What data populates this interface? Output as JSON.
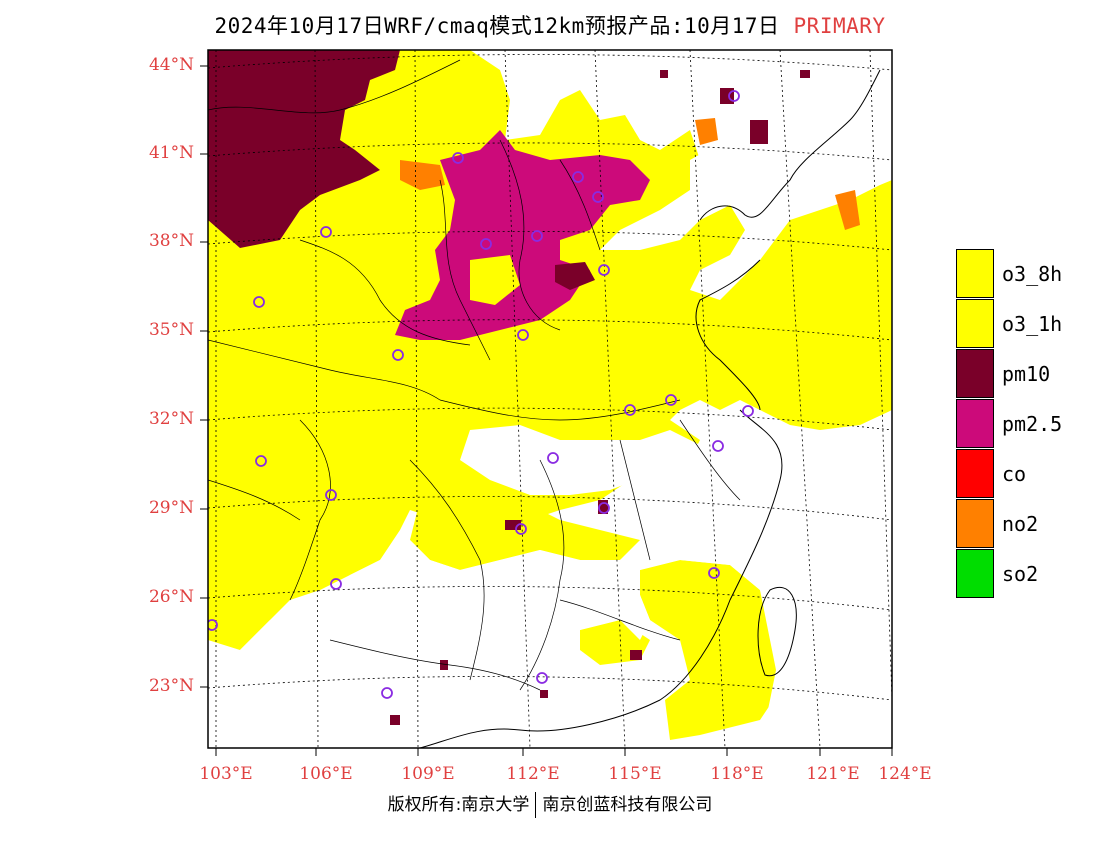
{
  "title": {
    "main": "2024年10月17日WRF/cmaq模式12km预报产品:10月17日",
    "tag": "PRIMARY"
  },
  "axes": {
    "lat_labels": [
      {
        "value": 44,
        "text": "44°N"
      },
      {
        "value": 41,
        "text": "41°N"
      },
      {
        "value": 38,
        "text": "38°N"
      },
      {
        "value": 35,
        "text": "35°N"
      },
      {
        "value": 32,
        "text": "32°N"
      },
      {
        "value": 29,
        "text": "29°N"
      },
      {
        "value": 26,
        "text": "26°N"
      },
      {
        "value": 23,
        "text": "23°N"
      }
    ],
    "lon_labels": [
      {
        "value": 103,
        "text": "103°E"
      },
      {
        "value": 106,
        "text": "106°E"
      },
      {
        "value": 109,
        "text": "109°E"
      },
      {
        "value": 112,
        "text": "112°E"
      },
      {
        "value": 115,
        "text": "115°E"
      },
      {
        "value": 118,
        "text": "118°E"
      },
      {
        "value": 121,
        "text": "121°E"
      },
      {
        "value": 124,
        "text": "124°E"
      }
    ],
    "label_color": "#e04040"
  },
  "legend": [
    {
      "label": "o3_8h",
      "color": "#ffff00"
    },
    {
      "label": "o3_1h",
      "color": "#ffff00"
    },
    {
      "label": "pm10",
      "color": "#7a0029"
    },
    {
      "label": "pm2.5",
      "color": "#cc0a7a"
    },
    {
      "label": "co",
      "color": "#ff0000"
    },
    {
      "label": "no2",
      "color": "#ff8000"
    },
    {
      "label": "so2",
      "color": "#00dd00"
    }
  ],
  "copyright": {
    "left": "版权所有:南京大学",
    "right": "南京创蓝科技有限公司"
  }
}
